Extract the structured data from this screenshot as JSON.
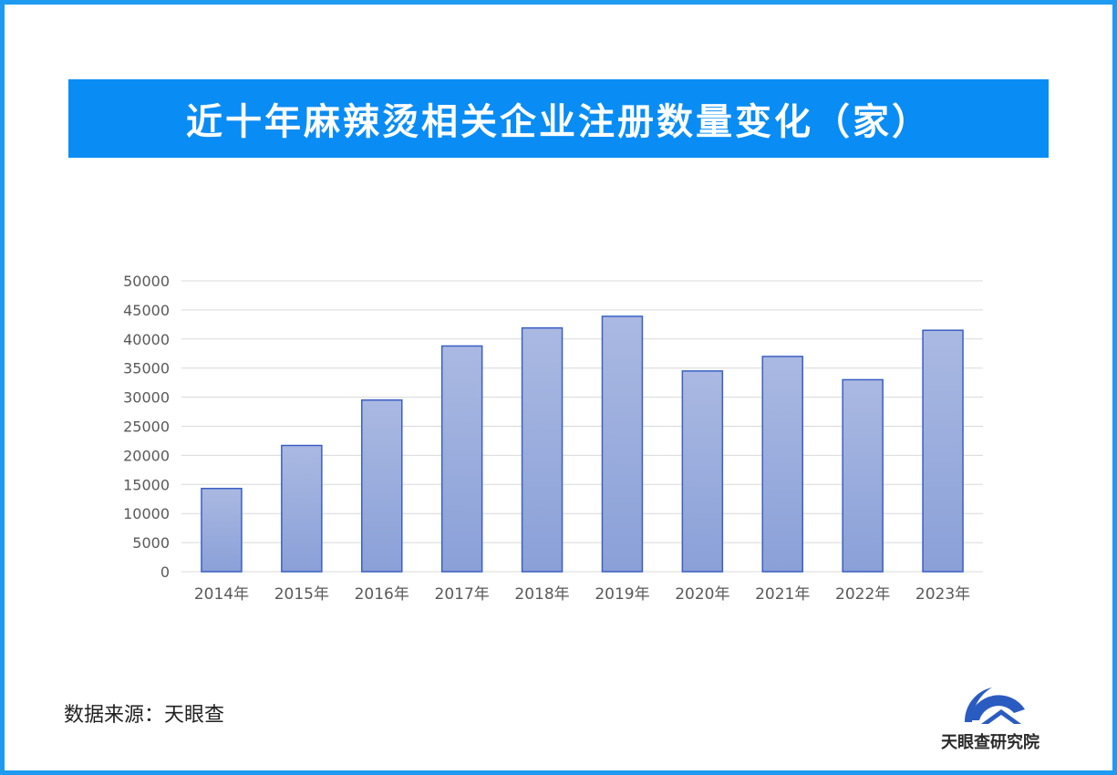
{
  "title": "近十年麻辣烫相关企业注册数量变化（家）",
  "source": "数据来源：天眼查",
  "logo_text": "天眼查研究院",
  "colors": {
    "frame": "#1e9bf0",
    "banner": "#0a8cf5",
    "bar_fill_top": "#aab9e2",
    "bar_fill_bottom": "#8aa0d8",
    "bar_stroke": "#3a5fc4",
    "gridline": "#d9d9d9",
    "tick_text": "#595959"
  },
  "chart_data": {
    "type": "bar",
    "categories": [
      "2014年",
      "2015年",
      "2016年",
      "2017年",
      "2018年",
      "2019年",
      "2020年",
      "2021年",
      "2022年",
      "2023年"
    ],
    "values": [
      14300,
      21700,
      29500,
      38800,
      41900,
      43900,
      34500,
      37000,
      33000,
      41500
    ],
    "ylim": [
      0,
      50000
    ],
    "yticks": [
      0,
      5000,
      10000,
      15000,
      20000,
      25000,
      30000,
      35000,
      40000,
      45000,
      50000
    ],
    "grid": true,
    "legend": "none",
    "xlabel": "",
    "ylabel": ""
  }
}
